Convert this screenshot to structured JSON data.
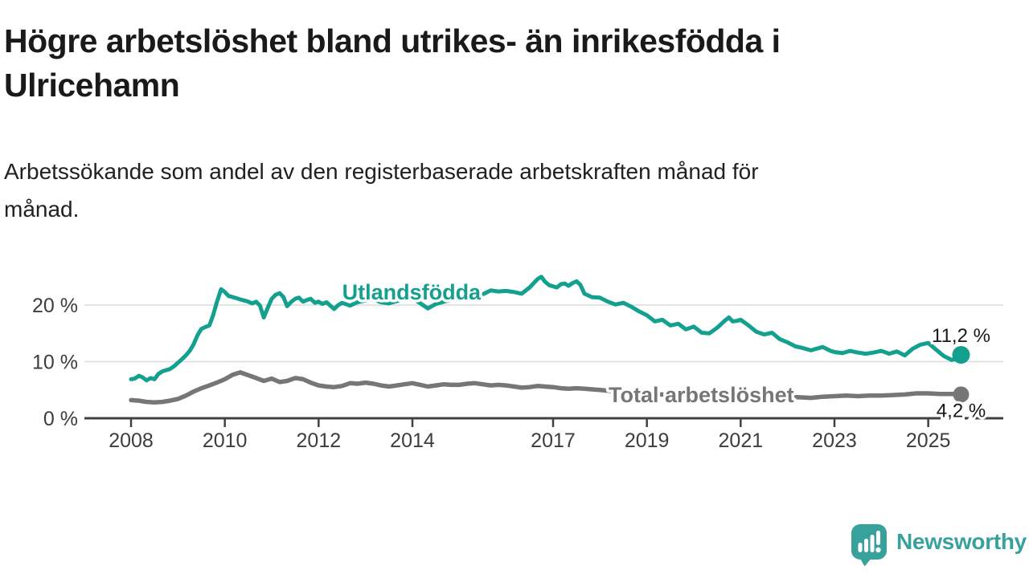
{
  "header": {
    "title_line1": "Högre arbetslöshet bland utrikes- än inrikesfödda i",
    "title_line2": "Ulricehamn",
    "subtitle_line1": "Arbetssökande som andel av den registerbaserade arbetskraften månad för",
    "subtitle_line2": "månad."
  },
  "footer": {
    "brand": "Newsworthy"
  },
  "colors": {
    "teal": "#13a08f",
    "gray": "#767676",
    "grid": "#dcdcdc",
    "axis": "#404040",
    "tick_text": "#3d3d3d",
    "value_text": "#1a1a1a",
    "logo": "#38a19c"
  },
  "chart_data": {
    "type": "line",
    "title": "Högre arbetslöshet bland utrikes- än inrikesfödda i Ulricehamn",
    "subtitle": "Arbetssökande som andel av den registerbaserade arbetskraften månad för månad.",
    "grid": "horizontal",
    "legend": "inline-labels",
    "x_axis": {
      "range": [
        2007.0,
        2025.9
      ],
      "ticks": [
        2008,
        2010,
        2012,
        2014,
        2017,
        2019,
        2021,
        2023,
        2025
      ]
    },
    "y_axis": {
      "unit": "%",
      "range": [
        0,
        26
      ],
      "ticks": [
        0,
        10,
        20
      ],
      "tick_labels": [
        "0 %",
        "10 %",
        "20 %"
      ]
    },
    "series": [
      {
        "name": "Utlandsfödda",
        "color": "#13a08f",
        "end_label": "11,2 %",
        "end_value": 11.2,
        "label_anchor": {
          "year": 2013.98,
          "pct": 22.3
        },
        "points": [
          [
            2008.0,
            6.9
          ],
          [
            2008.08,
            7.0
          ],
          [
            2008.17,
            7.5
          ],
          [
            2008.25,
            7.2
          ],
          [
            2008.33,
            6.7
          ],
          [
            2008.42,
            7.1
          ],
          [
            2008.5,
            6.9
          ],
          [
            2008.58,
            7.8
          ],
          [
            2008.67,
            8.3
          ],
          [
            2008.75,
            8.5
          ],
          [
            2008.83,
            8.7
          ],
          [
            2008.92,
            9.2
          ],
          [
            2009.0,
            9.8
          ],
          [
            2009.08,
            10.4
          ],
          [
            2009.17,
            11.1
          ],
          [
            2009.25,
            11.9
          ],
          [
            2009.33,
            13.0
          ],
          [
            2009.42,
            14.7
          ],
          [
            2009.5,
            15.8
          ],
          [
            2009.58,
            16.1
          ],
          [
            2009.67,
            16.4
          ],
          [
            2009.75,
            18.2
          ],
          [
            2009.83,
            20.5
          ],
          [
            2009.92,
            22.8
          ],
          [
            2010.0,
            22.3
          ],
          [
            2010.08,
            21.6
          ],
          [
            2010.17,
            21.4
          ],
          [
            2010.25,
            21.2
          ],
          [
            2010.33,
            21.0
          ],
          [
            2010.42,
            20.8
          ],
          [
            2010.5,
            20.6
          ],
          [
            2010.58,
            20.3
          ],
          [
            2010.67,
            20.6
          ],
          [
            2010.75,
            19.9
          ],
          [
            2010.83,
            17.8
          ],
          [
            2010.92,
            19.6
          ],
          [
            2011.0,
            21.1
          ],
          [
            2011.08,
            21.8
          ],
          [
            2011.17,
            22.1
          ],
          [
            2011.25,
            21.4
          ],
          [
            2011.33,
            19.8
          ],
          [
            2011.42,
            20.6
          ],
          [
            2011.5,
            21.1
          ],
          [
            2011.58,
            21.3
          ],
          [
            2011.67,
            20.6
          ],
          [
            2011.75,
            20.9
          ],
          [
            2011.83,
            21.1
          ],
          [
            2011.92,
            20.4
          ],
          [
            2012.0,
            20.6
          ],
          [
            2012.08,
            20.2
          ],
          [
            2012.17,
            20.5
          ],
          [
            2012.25,
            19.9
          ],
          [
            2012.33,
            19.3
          ],
          [
            2012.42,
            20.0
          ],
          [
            2012.5,
            20.4
          ],
          [
            2012.67,
            19.9
          ],
          [
            2012.83,
            20.5
          ],
          [
            2013.0,
            20.8
          ],
          [
            2013.17,
            21.0
          ],
          [
            2013.33,
            20.5
          ],
          [
            2013.5,
            20.3
          ],
          [
            2013.67,
            20.7
          ],
          [
            2013.83,
            21.1
          ],
          [
            2014.0,
            21.2
          ],
          [
            2014.17,
            20.3
          ],
          [
            2014.33,
            19.4
          ],
          [
            2014.5,
            20.2
          ],
          [
            2014.67,
            20.6
          ],
          [
            2014.83,
            20.9
          ],
          [
            2015.0,
            21.2
          ],
          [
            2015.17,
            21.0
          ],
          [
            2015.33,
            21.4
          ],
          [
            2015.5,
            21.9
          ],
          [
            2015.67,
            22.6
          ],
          [
            2015.83,
            22.4
          ],
          [
            2016.0,
            22.5
          ],
          [
            2016.17,
            22.3
          ],
          [
            2016.33,
            22.0
          ],
          [
            2016.5,
            23.1
          ],
          [
            2016.67,
            24.6
          ],
          [
            2016.75,
            25.0
          ],
          [
            2016.83,
            24.1
          ],
          [
            2016.92,
            23.5
          ],
          [
            2017.0,
            23.3
          ],
          [
            2017.08,
            23.1
          ],
          [
            2017.17,
            23.7
          ],
          [
            2017.25,
            23.8
          ],
          [
            2017.33,
            23.4
          ],
          [
            2017.42,
            23.9
          ],
          [
            2017.5,
            24.2
          ],
          [
            2017.58,
            23.6
          ],
          [
            2017.67,
            22.0
          ],
          [
            2017.75,
            21.7
          ],
          [
            2017.83,
            21.4
          ],
          [
            2018.0,
            21.3
          ],
          [
            2018.17,
            20.6
          ],
          [
            2018.33,
            20.1
          ],
          [
            2018.5,
            20.4
          ],
          [
            2018.67,
            19.7
          ],
          [
            2018.83,
            18.9
          ],
          [
            2019.0,
            18.2
          ],
          [
            2019.17,
            17.1
          ],
          [
            2019.33,
            17.4
          ],
          [
            2019.5,
            16.4
          ],
          [
            2019.67,
            16.7
          ],
          [
            2019.83,
            15.7
          ],
          [
            2020.0,
            16.2
          ],
          [
            2020.17,
            15.1
          ],
          [
            2020.33,
            15.0
          ],
          [
            2020.5,
            16.0
          ],
          [
            2020.67,
            17.3
          ],
          [
            2020.75,
            17.8
          ],
          [
            2020.83,
            17.1
          ],
          [
            2020.92,
            17.2
          ],
          [
            2021.0,
            17.4
          ],
          [
            2021.17,
            16.4
          ],
          [
            2021.33,
            15.3
          ],
          [
            2021.5,
            14.8
          ],
          [
            2021.67,
            15.1
          ],
          [
            2021.83,
            14.0
          ],
          [
            2022.0,
            13.4
          ],
          [
            2022.17,
            12.7
          ],
          [
            2022.33,
            12.4
          ],
          [
            2022.5,
            12.0
          ],
          [
            2022.58,
            12.2
          ],
          [
            2022.75,
            12.6
          ],
          [
            2022.92,
            11.9
          ],
          [
            2023.0,
            11.7
          ],
          [
            2023.17,
            11.5
          ],
          [
            2023.33,
            11.9
          ],
          [
            2023.5,
            11.6
          ],
          [
            2023.67,
            11.4
          ],
          [
            2023.83,
            11.6
          ],
          [
            2024.0,
            11.9
          ],
          [
            2024.17,
            11.4
          ],
          [
            2024.33,
            11.8
          ],
          [
            2024.5,
            11.1
          ],
          [
            2024.67,
            12.3
          ],
          [
            2024.83,
            13.0
          ],
          [
            2025.0,
            13.3
          ],
          [
            2025.17,
            12.1
          ],
          [
            2025.33,
            11.0
          ],
          [
            2025.5,
            10.3
          ],
          [
            2025.58,
            10.5
          ],
          [
            2025.7,
            11.2
          ]
        ]
      },
      {
        "name": "Total arbetslöshet",
        "color": "#767676",
        "end_label": "4,2 %",
        "end_value": 4.2,
        "label_anchor": {
          "year": 2020.16,
          "pct": 4.1
        },
        "points": [
          [
            2008.0,
            3.2
          ],
          [
            2008.17,
            3.1
          ],
          [
            2008.33,
            2.9
          ],
          [
            2008.5,
            2.8
          ],
          [
            2008.67,
            2.9
          ],
          [
            2008.83,
            3.1
          ],
          [
            2009.0,
            3.4
          ],
          [
            2009.17,
            4.0
          ],
          [
            2009.33,
            4.7
          ],
          [
            2009.5,
            5.3
          ],
          [
            2009.67,
            5.8
          ],
          [
            2009.83,
            6.3
          ],
          [
            2010.0,
            6.9
          ],
          [
            2010.17,
            7.7
          ],
          [
            2010.33,
            8.1
          ],
          [
            2010.5,
            7.6
          ],
          [
            2010.67,
            7.1
          ],
          [
            2010.83,
            6.6
          ],
          [
            2011.0,
            7.0
          ],
          [
            2011.17,
            6.4
          ],
          [
            2011.33,
            6.6
          ],
          [
            2011.5,
            7.1
          ],
          [
            2011.67,
            6.9
          ],
          [
            2011.83,
            6.3
          ],
          [
            2012.0,
            5.8
          ],
          [
            2012.17,
            5.6
          ],
          [
            2012.33,
            5.5
          ],
          [
            2012.5,
            5.7
          ],
          [
            2012.67,
            6.2
          ],
          [
            2012.83,
            6.1
          ],
          [
            2013.0,
            6.3
          ],
          [
            2013.17,
            6.1
          ],
          [
            2013.33,
            5.8
          ],
          [
            2013.5,
            5.6
          ],
          [
            2013.67,
            5.8
          ],
          [
            2013.83,
            6.0
          ],
          [
            2014.0,
            6.2
          ],
          [
            2014.17,
            5.9
          ],
          [
            2014.33,
            5.6
          ],
          [
            2014.5,
            5.8
          ],
          [
            2014.67,
            6.0
          ],
          [
            2014.83,
            5.9
          ],
          [
            2015.0,
            5.9
          ],
          [
            2015.17,
            6.1
          ],
          [
            2015.33,
            6.2
          ],
          [
            2015.5,
            6.0
          ],
          [
            2015.67,
            5.8
          ],
          [
            2015.83,
            5.9
          ],
          [
            2016.0,
            5.8
          ],
          [
            2016.17,
            5.6
          ],
          [
            2016.33,
            5.4
          ],
          [
            2016.5,
            5.5
          ],
          [
            2016.67,
            5.7
          ],
          [
            2016.83,
            5.6
          ],
          [
            2017.0,
            5.5
          ],
          [
            2017.17,
            5.3
          ],
          [
            2017.33,
            5.2
          ],
          [
            2017.5,
            5.3
          ],
          [
            2017.67,
            5.2
          ],
          [
            2017.83,
            5.1
          ],
          [
            2018.0,
            5.0
          ],
          [
            2018.25,
            4.8
          ],
          [
            2018.5,
            4.6
          ],
          [
            2018.75,
            4.5
          ],
          [
            2019.0,
            4.4
          ],
          [
            2019.25,
            4.2
          ],
          [
            2019.5,
            4.2
          ],
          [
            2019.75,
            4.1
          ],
          [
            2020.0,
            4.1
          ],
          [
            2020.25,
            4.3
          ],
          [
            2020.5,
            4.5
          ],
          [
            2020.75,
            4.4
          ],
          [
            2021.0,
            4.4
          ],
          [
            2021.25,
            4.2
          ],
          [
            2021.5,
            4.0
          ],
          [
            2021.75,
            3.9
          ],
          [
            2022.0,
            3.8
          ],
          [
            2022.25,
            3.7
          ],
          [
            2022.5,
            3.6
          ],
          [
            2022.75,
            3.8
          ],
          [
            2023.0,
            3.9
          ],
          [
            2023.25,
            4.0
          ],
          [
            2023.5,
            3.9
          ],
          [
            2023.75,
            4.0
          ],
          [
            2024.0,
            4.0
          ],
          [
            2024.25,
            4.1
          ],
          [
            2024.5,
            4.2
          ],
          [
            2024.75,
            4.4
          ],
          [
            2025.0,
            4.4
          ],
          [
            2025.25,
            4.3
          ],
          [
            2025.5,
            4.3
          ],
          [
            2025.7,
            4.2
          ]
        ]
      }
    ]
  }
}
